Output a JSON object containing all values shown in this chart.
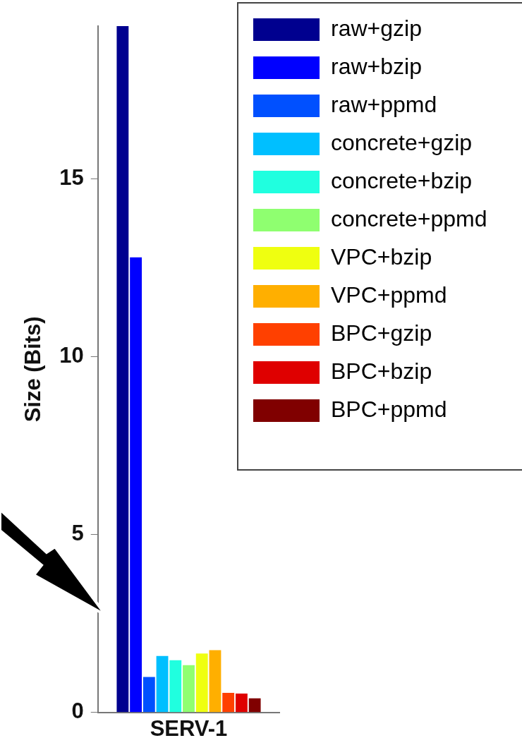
{
  "chart_data": {
    "type": "bar",
    "ylabel": "Size (Bits)",
    "categories": [
      "SERV-1"
    ],
    "ylim": [
      0,
      19.3
    ],
    "yticks": [
      0,
      5,
      10,
      15
    ],
    "grid": false,
    "legend": "top right",
    "series": [
      {
        "name": "raw+gzip",
        "color": "#00008f",
        "values": [
          19.3
        ]
      },
      {
        "name": "raw+bzip",
        "color": "#0000ff",
        "values": [
          12.8
        ]
      },
      {
        "name": "raw+ppmd",
        "color": "#0050ff",
        "values": [
          1.0
        ]
      },
      {
        "name": "concrete+gzip",
        "color": "#00bfff",
        "values": [
          1.59
        ]
      },
      {
        "name": "concrete+bzip",
        "color": "#20ffdf",
        "values": [
          1.47
        ]
      },
      {
        "name": "concrete+ppmd",
        "color": "#8fff70",
        "values": [
          1.33
        ]
      },
      {
        "name": "VPC+bzip",
        "color": "#efff10",
        "values": [
          1.66
        ]
      },
      {
        "name": "VPC+ppmd",
        "color": "#ffaf00",
        "values": [
          1.75
        ]
      },
      {
        "name": "BPC+gzip",
        "color": "#ff4000",
        "values": [
          0.55
        ]
      },
      {
        "name": "BPC+bzip",
        "color": "#df0000",
        "values": [
          0.53
        ]
      },
      {
        "name": "BPC+ppmd",
        "color": "#800000",
        "values": [
          0.4
        ]
      }
    ]
  }
}
